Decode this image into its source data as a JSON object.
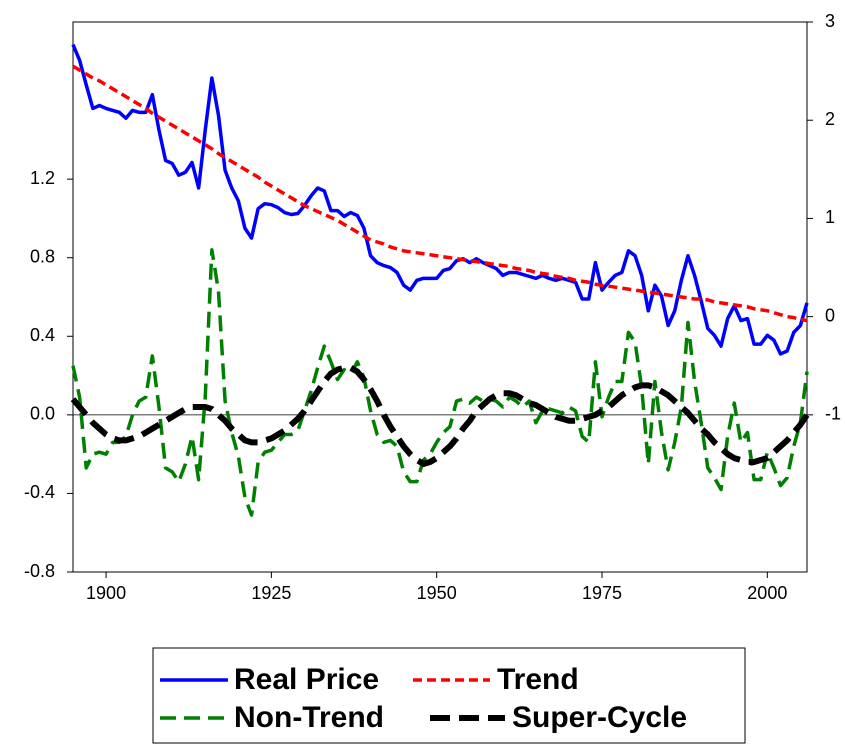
{
  "chart_data": {
    "type": "line",
    "x": [
      1895,
      1896,
      1897,
      1898,
      1899,
      1900,
      1901,
      1902,
      1903,
      1904,
      1905,
      1906,
      1907,
      1908,
      1909,
      1910,
      1911,
      1912,
      1913,
      1914,
      1915,
      1916,
      1917,
      1918,
      1919,
      1920,
      1921,
      1922,
      1923,
      1924,
      1925,
      1926,
      1927,
      1928,
      1929,
      1930,
      1931,
      1932,
      1933,
      1934,
      1935,
      1936,
      1937,
      1938,
      1939,
      1940,
      1941,
      1942,
      1943,
      1944,
      1945,
      1946,
      1947,
      1948,
      1949,
      1950,
      1951,
      1952,
      1953,
      1954,
      1955,
      1956,
      1957,
      1958,
      1959,
      1960,
      1961,
      1962,
      1963,
      1964,
      1965,
      1966,
      1967,
      1968,
      1969,
      1970,
      1971,
      1972,
      1973,
      1974,
      1975,
      1976,
      1977,
      1978,
      1979,
      1980,
      1981,
      1982,
      1983,
      1984,
      1985,
      1986,
      1987,
      1988,
      1989,
      1990,
      1991,
      1992,
      1993,
      1994,
      1995,
      1996,
      1997,
      1998,
      1999,
      2000,
      2001,
      2002,
      2003,
      2004,
      2005,
      2006
    ],
    "xlim": [
      1895,
      2006
    ],
    "xticks": [
      1900,
      1925,
      1950,
      1975,
      2000
    ],
    "ylim": [
      -0.8,
      2.0
    ],
    "yticks": [
      -0.8,
      -0.4,
      {
        "value": 0,
        "label": "0.0"
      },
      0.4,
      0.8,
      1.2
    ],
    "y2lim": [
      -2.6,
      3.0
    ],
    "y2ticks": [
      -1,
      0,
      1,
      2,
      3
    ],
    "zero_line": true,
    "series": [
      {
        "name": "Real Price",
        "color": "#0000ff",
        "style": "solid",
        "axis": "y2",
        "values": [
          2.77,
          2.61,
          2.36,
          2.12,
          2.15,
          2.12,
          2.1,
          2.08,
          2.02,
          2.1,
          2.08,
          2.08,
          2.26,
          1.9,
          1.59,
          1.56,
          1.44,
          1.47,
          1.57,
          1.31,
          1.9,
          2.43,
          2.05,
          1.49,
          1.31,
          1.18,
          0.9,
          0.8,
          1.1,
          1.15,
          1.14,
          1.11,
          1.06,
          1.04,
          1.05,
          1.13,
          1.23,
          1.31,
          1.28,
          1.08,
          1.08,
          1.02,
          1.06,
          1.03,
          0.9,
          0.62,
          0.55,
          0.52,
          0.5,
          0.45,
          0.32,
          0.27,
          0.37,
          0.39,
          0.39,
          0.39,
          0.47,
          0.49,
          0.57,
          0.59,
          0.55,
          0.59,
          0.55,
          0.52,
          0.49,
          0.42,
          0.45,
          0.45,
          0.43,
          0.41,
          0.39,
          0.42,
          0.39,
          0.37,
          0.39,
          0.37,
          0.35,
          0.18,
          0.18,
          0.55,
          0.27,
          0.35,
          0.42,
          0.45,
          0.67,
          0.62,
          0.42,
          0.06,
          0.32,
          0.21,
          -0.09,
          0.06,
          0.37,
          0.62,
          0.42,
          0.16,
          -0.12,
          -0.19,
          -0.3,
          -0.02,
          0.11,
          -0.04,
          -0.02,
          -0.28,
          -0.28,
          -0.19,
          -0.24,
          -0.38,
          -0.35,
          -0.16,
          -0.09,
          0.14
        ]
      },
      {
        "name": "Trend",
        "color": "#ff0000",
        "style": "dash",
        "axis": "y2",
        "values": [
          2.55,
          2.51,
          2.47,
          2.43,
          2.4,
          2.36,
          2.32,
          2.28,
          2.24,
          2.2,
          2.16,
          2.12,
          2.07,
          2.03,
          1.99,
          1.95,
          1.91,
          1.87,
          1.83,
          1.79,
          1.75,
          1.71,
          1.66,
          1.62,
          1.58,
          1.54,
          1.5,
          1.46,
          1.42,
          1.37,
          1.33,
          1.29,
          1.25,
          1.21,
          1.17,
          1.13,
          1.1,
          1.07,
          1.04,
          1.01,
          0.98,
          0.94,
          0.9,
          0.86,
          0.82,
          0.78,
          0.76,
          0.74,
          0.71,
          0.69,
          0.67,
          0.66,
          0.65,
          0.64,
          0.63,
          0.62,
          0.61,
          0.6,
          0.59,
          0.58,
          0.57,
          0.56,
          0.55,
          0.54,
          0.53,
          0.52,
          0.51,
          0.49,
          0.48,
          0.47,
          0.45,
          0.44,
          0.43,
          0.41,
          0.4,
          0.39,
          0.37,
          0.36,
          0.35,
          0.33,
          0.32,
          0.31,
          0.3,
          0.29,
          0.28,
          0.27,
          0.26,
          0.25,
          0.24,
          0.23,
          0.22,
          0.21,
          0.2,
          0.19,
          0.18,
          0.18,
          0.17,
          0.15,
          0.14,
          0.13,
          0.12,
          0.11,
          0.1,
          0.08,
          0.07,
          0.06,
          0.04,
          0.02,
          0.0,
          -0.01,
          -0.03,
          -0.04
        ]
      },
      {
        "name": "Non-Trend",
        "color": "#008000",
        "style": "long-dash",
        "axis": "y",
        "values": [
          0.25,
          0.09,
          -0.27,
          -0.2,
          -0.19,
          -0.2,
          -0.14,
          -0.14,
          -0.11,
          0.0,
          0.07,
          0.09,
          0.3,
          0.04,
          -0.27,
          -0.29,
          -0.34,
          -0.25,
          -0.11,
          -0.33,
          0.09,
          0.84,
          0.63,
          0.07,
          -0.09,
          -0.21,
          -0.42,
          -0.51,
          -0.24,
          -0.19,
          -0.18,
          -0.14,
          -0.1,
          -0.1,
          -0.08,
          0.02,
          0.12,
          0.24,
          0.35,
          0.27,
          0.18,
          0.23,
          0.21,
          0.27,
          0.19,
          0.02,
          -0.1,
          -0.14,
          -0.13,
          -0.16,
          -0.29,
          -0.34,
          -0.34,
          -0.23,
          -0.2,
          -0.14,
          -0.09,
          -0.06,
          0.07,
          0.08,
          0.06,
          0.09,
          0.07,
          0.08,
          0.07,
          0.04,
          0.09,
          0.07,
          0.04,
          0.07,
          -0.04,
          0.02,
          0.03,
          0.02,
          0.01,
          0.04,
          0.02,
          -0.11,
          -0.14,
          0.27,
          -0.01,
          0.09,
          0.17,
          0.17,
          0.42,
          0.37,
          0.14,
          -0.25,
          0.17,
          -0.09,
          -0.28,
          -0.14,
          0.04,
          0.47,
          0.17,
          -0.04,
          -0.27,
          -0.32,
          -0.38,
          -0.11,
          0.06,
          -0.14,
          -0.09,
          -0.33,
          -0.33,
          -0.19,
          -0.27,
          -0.36,
          -0.32,
          -0.16,
          -0.04,
          0.22
        ]
      },
      {
        "name": "Super-Cycle",
        "color": "#000000",
        "style": "heavy-dash",
        "axis": "y",
        "values": [
          0.08,
          0.04,
          0.0,
          -0.04,
          -0.07,
          -0.1,
          -0.12,
          -0.13,
          -0.13,
          -0.12,
          -0.11,
          -0.09,
          -0.07,
          -0.05,
          -0.03,
          -0.01,
          0.01,
          0.03,
          0.04,
          0.04,
          0.04,
          0.03,
          0.0,
          -0.03,
          -0.07,
          -0.1,
          -0.13,
          -0.14,
          -0.14,
          -0.13,
          -0.12,
          -0.1,
          -0.08,
          -0.05,
          -0.02,
          0.02,
          0.07,
          0.12,
          0.17,
          0.21,
          0.23,
          0.24,
          0.24,
          0.22,
          0.18,
          0.13,
          0.07,
          0.0,
          -0.06,
          -0.11,
          -0.16,
          -0.2,
          -0.23,
          -0.25,
          -0.24,
          -0.22,
          -0.19,
          -0.16,
          -0.12,
          -0.07,
          -0.03,
          0.02,
          0.05,
          0.08,
          0.1,
          0.11,
          0.11,
          0.1,
          0.08,
          0.06,
          0.05,
          0.03,
          0.01,
          -0.01,
          -0.02,
          -0.03,
          -0.03,
          -0.02,
          -0.01,
          0.0,
          0.02,
          0.04,
          0.07,
          0.1,
          0.12,
          0.14,
          0.15,
          0.15,
          0.14,
          0.12,
          0.1,
          0.07,
          0.04,
          0.01,
          -0.03,
          -0.07,
          -0.1,
          -0.14,
          -0.17,
          -0.2,
          -0.22,
          -0.23,
          -0.24,
          -0.24,
          -0.23,
          -0.22,
          -0.19,
          -0.16,
          -0.13,
          -0.09,
          -0.05,
          0.0
        ]
      }
    ]
  }
}
